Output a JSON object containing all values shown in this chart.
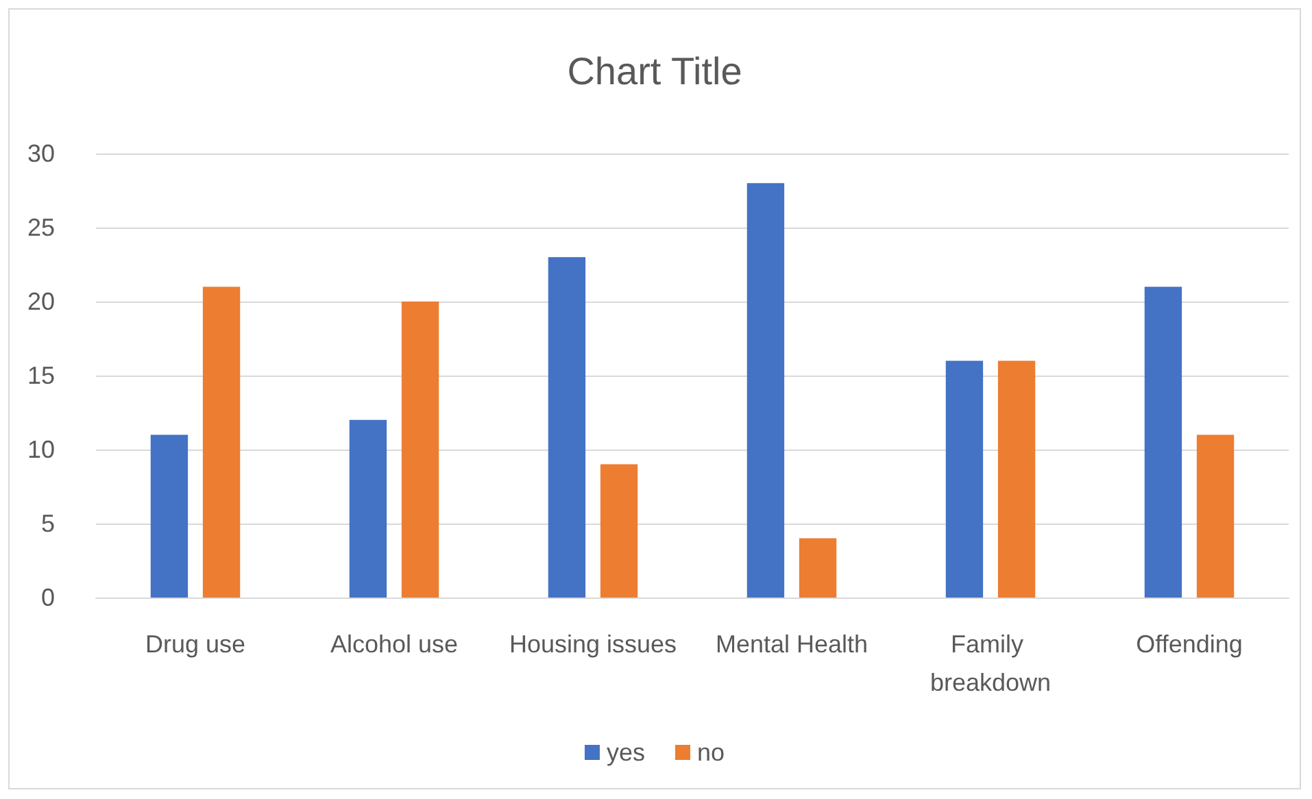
{
  "chart_data": {
    "type": "bar",
    "title": "Chart Title",
    "categories": [
      "Drug use",
      "Alcohol use",
      "Housing issues",
      "Mental Health",
      "Family breakdown",
      "Offending"
    ],
    "series": [
      {
        "name": "yes",
        "color": "#4472c4",
        "values": [
          11,
          12,
          23,
          28,
          16,
          21
        ]
      },
      {
        "name": "no",
        "color": "#ed7d31",
        "values": [
          21,
          20,
          9,
          4,
          16,
          11
        ]
      }
    ],
    "ylim": [
      0,
      30
    ],
    "yticks": [
      0,
      5,
      10,
      15,
      20,
      25,
      30
    ],
    "grid": "y",
    "legend": "bottom"
  }
}
